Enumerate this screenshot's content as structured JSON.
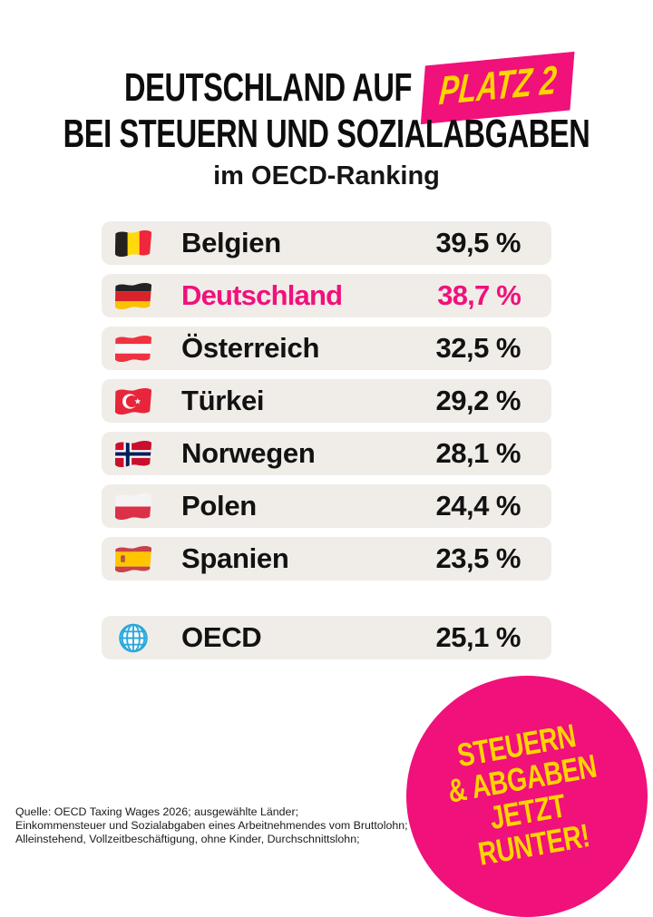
{
  "title": {
    "line1": "DEUTSCHLAND AUF",
    "badge": "PLATZ 2",
    "line2": "BEI STEUERN UND SOZIALABGABEN",
    "subtitle": "im OECD-Ranking"
  },
  "rows": [
    {
      "country": "Belgien",
      "value": "39,5 %",
      "flag": "belgium-flag",
      "highlight": false
    },
    {
      "country": "Deutschland",
      "value": "38,7 %",
      "flag": "germany-flag",
      "highlight": true
    },
    {
      "country": "Österreich",
      "value": "32,5 %",
      "flag": "austria-flag",
      "highlight": false
    },
    {
      "country": "Türkei",
      "value": "29,2 %",
      "flag": "turkey-flag",
      "highlight": false
    },
    {
      "country": "Norwegen",
      "value": "28,1 %",
      "flag": "norway-flag",
      "highlight": false
    },
    {
      "country": "Polen",
      "value": "24,4 %",
      "flag": "poland-flag",
      "highlight": false
    },
    {
      "country": "Spanien",
      "value": "23,5 %",
      "flag": "spain-flag",
      "highlight": false
    }
  ],
  "summary_row": {
    "country": "OECD",
    "value": "25,1 %",
    "flag": "globe",
    "highlight": false
  },
  "sticker": {
    "lines": [
      "STEUERN",
      "& ABGABEN",
      "JETZT",
      "RUNTER!"
    ]
  },
  "source": {
    "lines": [
      "Quelle: OECD Taxing Wages 2026; ausgewählte Länder;",
      "Einkommensteuer und Sozialabgaben eines Arbeitnehmendes vom Bruttolohn;",
      "Alleinstehend, Vollzeitbeschäftigung, ohne Kinder, Durchschnittslohn;"
    ]
  },
  "colors": {
    "accent_pink": "#F0117B",
    "accent_yellow": "#FFD400",
    "row_background": "#F0EDE8",
    "globe_blue": "#2BA8DC"
  },
  "chart_data": {
    "type": "table",
    "title": "Deutschland auf Platz 2 bei Steuern und Sozialabgaben im OECD-Ranking",
    "categories": [
      "Belgien",
      "Deutschland",
      "Österreich",
      "Türkei",
      "Norwegen",
      "Polen",
      "Spanien",
      "OECD"
    ],
    "values": [
      39.5,
      38.7,
      32.5,
      29.2,
      28.1,
      24.4,
      23.5,
      25.1
    ],
    "unit": "%",
    "highlighted_category": "Deutschland",
    "legend": "none",
    "grid": false
  }
}
